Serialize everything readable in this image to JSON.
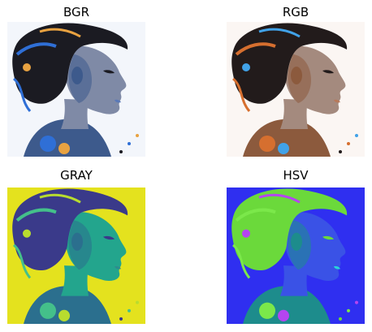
{
  "figure": {
    "panels": [
      {
        "id": "bgr",
        "title": "BGR"
      },
      {
        "id": "rgb",
        "title": "RGB"
      },
      {
        "id": "gray",
        "title": "GRAY"
      },
      {
        "id": "hsv",
        "title": "HSV"
      }
    ]
  },
  "palettes": {
    "bgr": {
      "bg": "#f3f6fb",
      "hair": "#1b1b22",
      "skin": "#7f8aa6",
      "shade": "#3d5a8c",
      "accent1": "#2f6fd6",
      "accent2": "#e8a241",
      "accent3": "#5a79b7"
    },
    "rgb": {
      "bg": "#fbf6f3",
      "hair": "#221b1b",
      "skin": "#a48a7e",
      "shade": "#8c5a3d",
      "accent1": "#d66f2f",
      "accent2": "#41a2e8",
      "accent3": "#b7795a"
    },
    "gray": {
      "bg": "#e4e21e",
      "hair": "#3a3a8a",
      "skin": "#23a58d",
      "shade": "#2b6f8e",
      "accent1": "#44c08a",
      "accent2": "#b8dc2f",
      "accent3": "#2e8c8e"
    },
    "hsv": {
      "bg": "#2f2ff0",
      "hair": "#6bd93b",
      "skin": "#3a52e6",
      "shade": "#1d8c8c",
      "accent1": "#7be84a",
      "accent2": "#b545f0",
      "accent3": "#29d6d8"
    }
  }
}
